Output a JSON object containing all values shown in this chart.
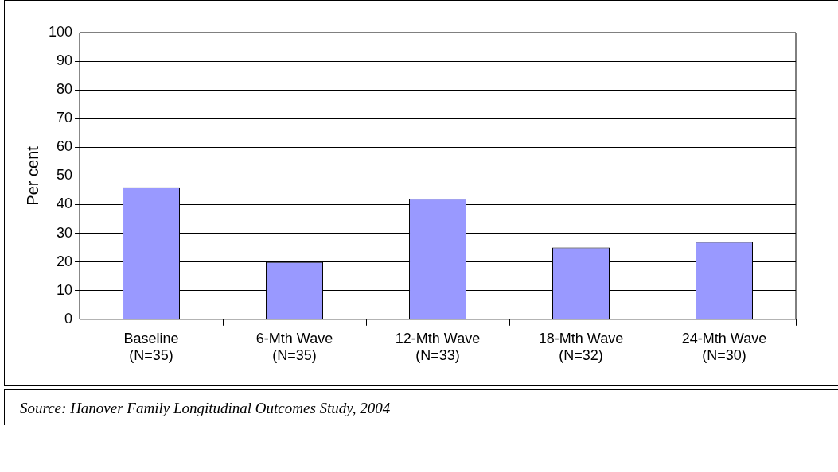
{
  "chart_data": {
    "type": "bar",
    "ylabel": "Per cent",
    "categories": [
      "Baseline\n(N=35)",
      "6-Mth Wave\n(N=35)",
      "12-Mth Wave\n(N=33)",
      "18-Mth Wave\n(N=32)",
      "24-Mth Wave\n(N=30)"
    ],
    "values": [
      46,
      20,
      42,
      25,
      27
    ],
    "color": "#9999ff",
    "ylim": [
      0,
      100
    ],
    "yticks": [
      0,
      10,
      20,
      30,
      40,
      50,
      60,
      70,
      80,
      90,
      100
    ],
    "grid": "y",
    "legend": false,
    "annotations": [
      "Source: Hanover Family Longitudinal Outcomes Study, 2004"
    ]
  }
}
